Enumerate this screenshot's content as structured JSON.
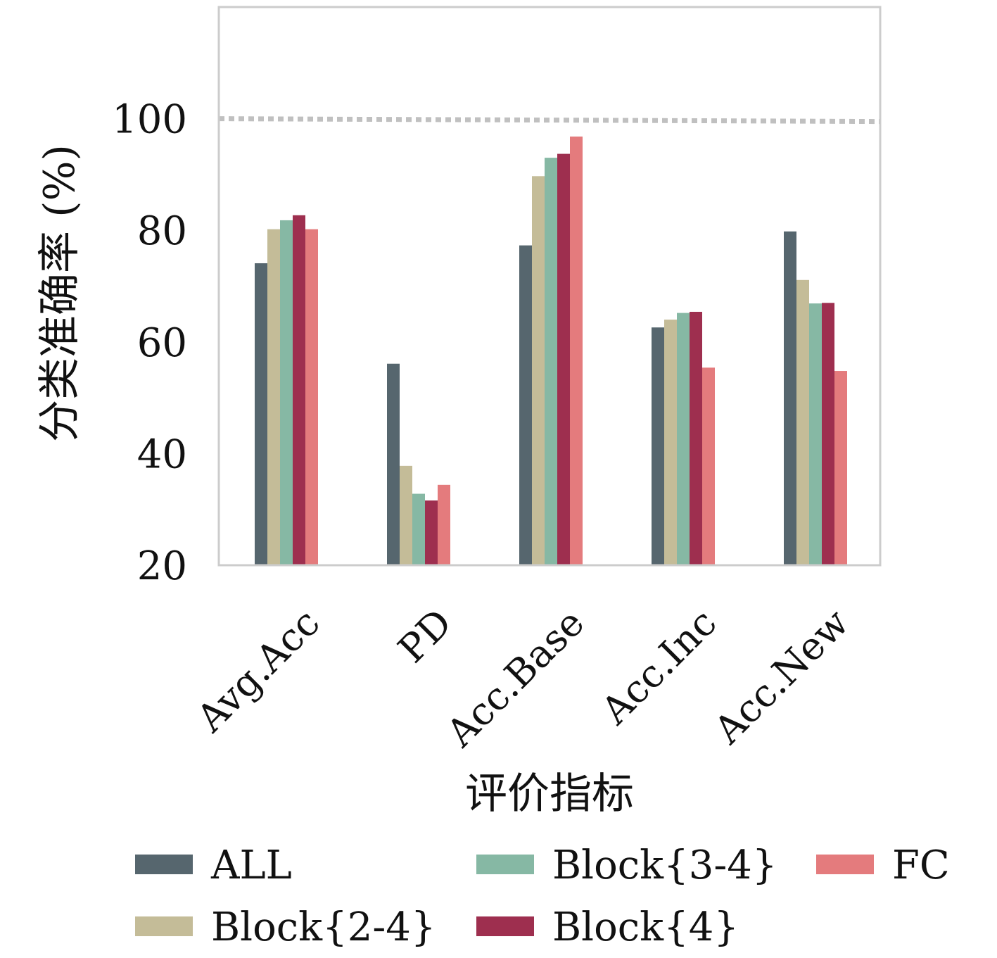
{
  "chart_data": {
    "type": "bar",
    "title": "",
    "xlabel": "评价指标",
    "ylabel": "分类准确率 (%)",
    "ylim": [
      20,
      120
    ],
    "yticks": [
      "20",
      "40",
      "60",
      "80",
      "100"
    ],
    "reference_line": 100,
    "categories": [
      "Avg.Acc",
      "PD",
      "Acc.Base",
      "Acc.Inc",
      "Acc.New"
    ],
    "series": [
      {
        "name": "ALL",
        "color": "#56666E",
        "values": [
          74.1,
          56.1,
          77.3,
          62.6,
          79.8
        ]
      },
      {
        "name": "Block{2-4}",
        "color": "#C4BC98",
        "values": [
          80.2,
          37.8,
          89.7,
          64.0,
          71.1
        ]
      },
      {
        "name": "Block{3-4}",
        "color": "#86B8A4",
        "values": [
          81.8,
          32.8,
          93.0,
          65.2,
          66.9
        ]
      },
      {
        "name": "Block{4}",
        "color": "#9E2F4F",
        "values": [
          82.7,
          31.6,
          93.7,
          65.4,
          67.0
        ]
      },
      {
        "name": "FC",
        "color": "#E47B7D",
        "values": [
          80.2,
          34.4,
          96.8,
          55.4,
          54.8
        ]
      }
    ],
    "grid": false,
    "legend_position": "bottom"
  }
}
